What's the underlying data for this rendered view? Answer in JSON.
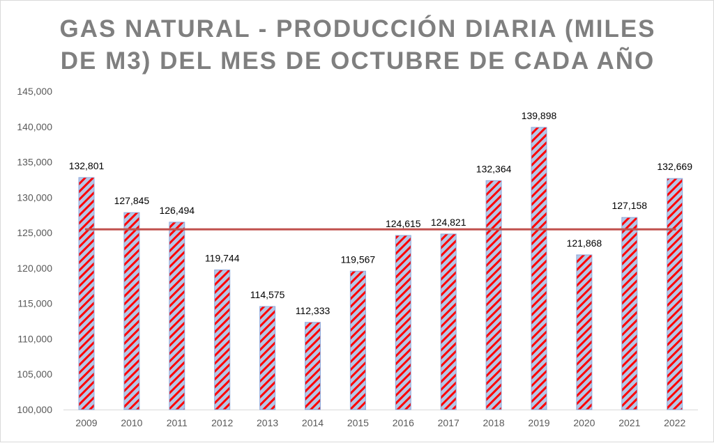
{
  "chart_data": {
    "type": "bar",
    "title": "GAS NATURAL - PRODUCCIÓN DIARIA (MILES DE M3) DEL MES DE OCTUBRE DE CADA AÑO",
    "title_lines": [
      "GAS NATURAL - PRODUCCIÓN DIARIA (MILES",
      "DE M3) DEL MES DE OCTUBRE DE CADA AÑO"
    ],
    "categories": [
      "2009",
      "2010",
      "2011",
      "2012",
      "2013",
      "2014",
      "2015",
      "2016",
      "2017",
      "2018",
      "2019",
      "2020",
      "2021",
      "2022"
    ],
    "values": [
      132801,
      127845,
      126494,
      119744,
      114575,
      112333,
      119567,
      124615,
      124821,
      132364,
      139898,
      121868,
      127158,
      132669
    ],
    "data_labels": [
      "132,801",
      "127,845",
      "126,494",
      "119,744",
      "114,575",
      "112,333",
      "119,567",
      "124,615",
      "124,821",
      "132,364",
      "139,898",
      "121,868",
      "127,158",
      "132,669"
    ],
    "average_line": 125482,
    "ylim": [
      100000,
      145000
    ],
    "yticks": [
      100000,
      105000,
      110000,
      115000,
      120000,
      125000,
      130000,
      135000,
      140000,
      145000
    ],
    "ytick_labels": [
      "100,000",
      "105,000",
      "110,000",
      "115,000",
      "120,000",
      "125,000",
      "130,000",
      "135,000",
      "140,000",
      "145,000"
    ],
    "xlabel": "",
    "ylabel": "",
    "grid": false,
    "legend": "none",
    "colors": {
      "bar_fill": "#b4c7e7",
      "bar_stripe": "#ff0000",
      "bar_border": "#8faadc",
      "average_line": "#c0504d",
      "title": "#7f7f7f"
    }
  }
}
